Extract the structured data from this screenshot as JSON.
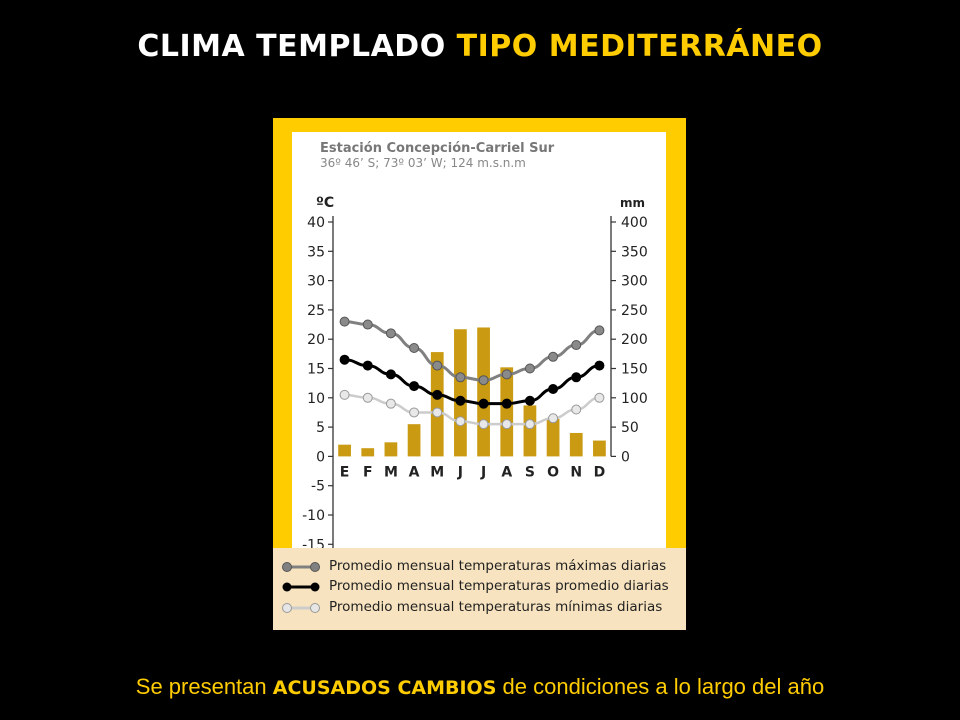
{
  "slide": {
    "title_part1": "CLIMA TEMPLADO",
    "title_part2": "TIPO MEDITERRÁNEO",
    "footer_pre": "Se presentan",
    "footer_emph": "ACUSADOS CAMBIOS",
    "footer_post": "de condiciones a lo largo del año"
  },
  "colors": {
    "background": "#000000",
    "accent": "#ffcc00",
    "bars": "#c99a12",
    "max_line": "#808080",
    "avg_line": "#000000",
    "min_line": "#cccccc",
    "legend_bg": "#f7e3bf"
  },
  "chart_data": {
    "type": "bar+line",
    "title": "Estación Concepción-Carriel Sur",
    "subtitle": "36º 46’ S; 73º 03’ W; 124 m.s.n.m",
    "y_left_label": "ºC",
    "y_right_label": "mm",
    "y_left_range": [
      -15,
      40
    ],
    "y_left_ticks": [
      "40",
      "35",
      "30",
      "25",
      "20",
      "15",
      "10",
      "5",
      "0",
      "-5",
      "-10",
      "-15"
    ],
    "y_right_range": [
      0,
      400
    ],
    "y_right_ticks": [
      "400",
      "350",
      "300",
      "250",
      "200",
      "150",
      "100",
      "50",
      "0"
    ],
    "categories": [
      "E",
      "F",
      "M",
      "A",
      "M",
      "J",
      "J",
      "A",
      "S",
      "O",
      "N",
      "D"
    ],
    "precipitation_mm": [
      20,
      14,
      24,
      55,
      178,
      217,
      220,
      152,
      87,
      64,
      40,
      27
    ],
    "series": [
      {
        "name": "Promedio mensual temperaturas máximas diarias",
        "values": [
          23,
          22.5,
          21,
          18.5,
          15.5,
          13.5,
          13,
          14,
          15,
          17,
          19,
          21.5
        ]
      },
      {
        "name": "Promedio mensual temperaturas promedio diarias",
        "values": [
          16.5,
          15.5,
          14,
          12,
          10.5,
          9.5,
          9,
          9,
          9.5,
          11.5,
          13.5,
          15.5
        ]
      },
      {
        "name": "Promedio mensual temperaturas mínimas diarias",
        "values": [
          10.5,
          10,
          9,
          7.5,
          7.5,
          6,
          5.5,
          5.5,
          5.5,
          6.5,
          8,
          10
        ]
      }
    ],
    "legend_position": "bottom",
    "grid": false
  }
}
